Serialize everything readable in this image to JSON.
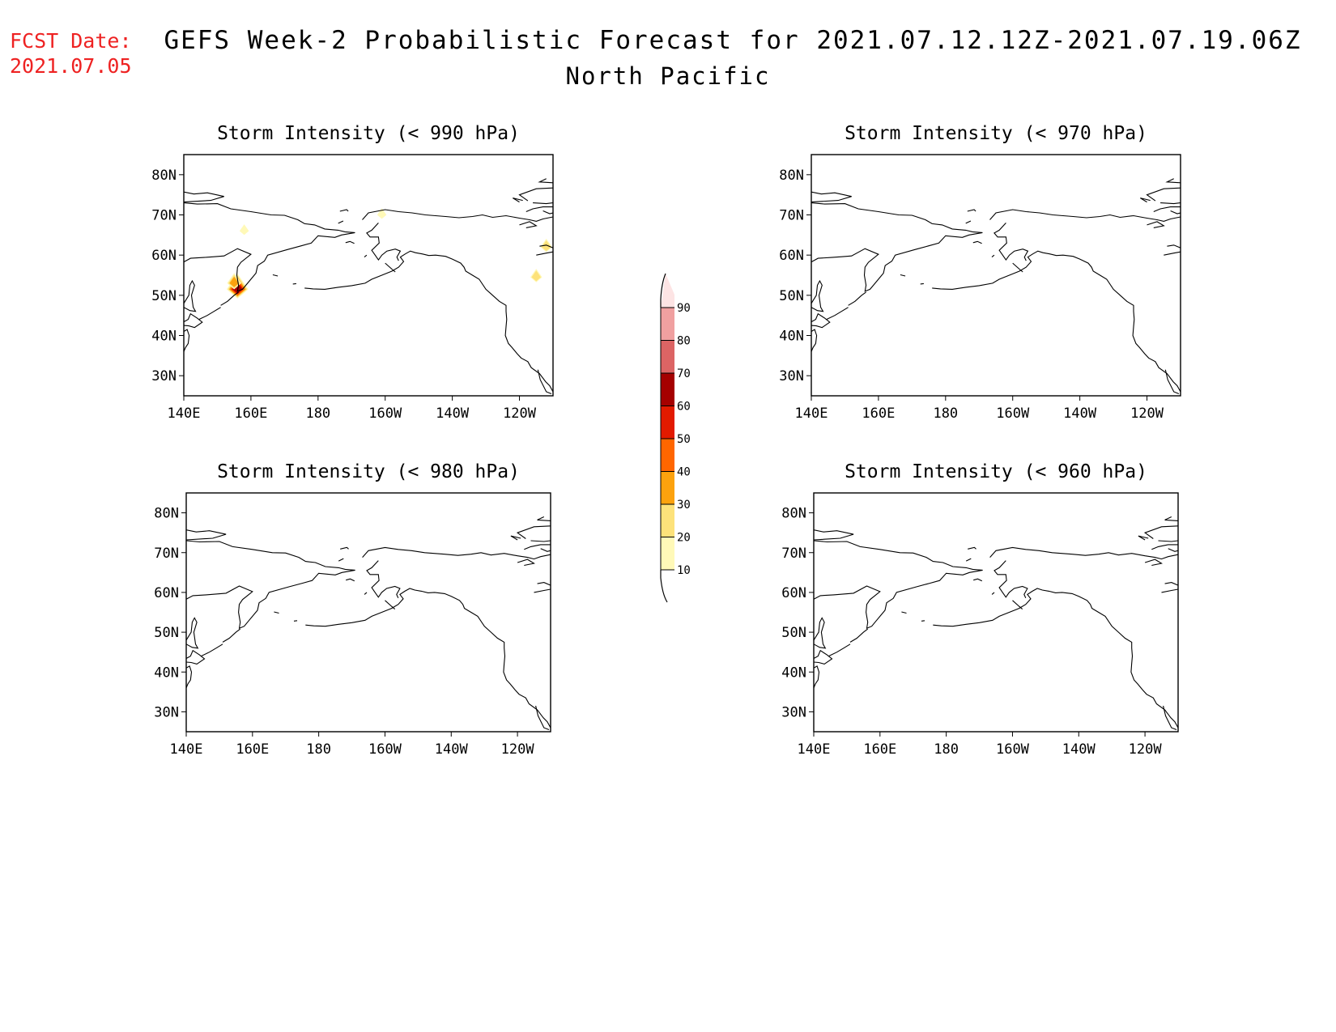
{
  "header": {
    "fcst_label": "FCST Date:",
    "fcst_date": "2021.07.05",
    "title": "GEFS Week-2 Probabilistic Forecast for 2021.07.12.12Z-2021.07.19.06Z",
    "region": "North Pacific"
  },
  "colors": {
    "fcst_text": "#ee2222",
    "scale": [
      "#fff9b8",
      "#fde27a",
      "#fca20e",
      "#ff6600",
      "#e21a00",
      "#a50000",
      "#dc6464",
      "#f0a0a0",
      "#fde4e4"
    ]
  },
  "chart_data": [
    {
      "type": "heatmap",
      "title": "Storm Intensity (< 990 hPa)",
      "x_ticks": [
        "140E",
        "160E",
        "180",
        "160W",
        "140W",
        "120W"
      ],
      "y_ticks": [
        "80N",
        "70N",
        "60N",
        "50N",
        "40N",
        "30N"
      ],
      "xlim": [
        140,
        250
      ],
      "ylim": [
        25,
        85
      ],
      "probability_areas": [
        {
          "lon": 156,
          "lat": 51.5,
          "max_prob": 60
        },
        {
          "lon": 155,
          "lat": 53,
          "max_prob": 30
        },
        {
          "lon": 245,
          "lat": 54.5,
          "max_prob": 20
        },
        {
          "lon": 248,
          "lat": 62,
          "max_prob": 20
        },
        {
          "lon": 158,
          "lat": 66,
          "max_prob": 10
        },
        {
          "lon": 199,
          "lat": 70,
          "max_prob": 10
        }
      ]
    },
    {
      "type": "heatmap",
      "title": "Storm Intensity (< 970 hPa)",
      "x_ticks": [
        "140E",
        "160E",
        "180",
        "160W",
        "140W",
        "120W"
      ],
      "y_ticks": [
        "80N",
        "70N",
        "60N",
        "50N",
        "40N",
        "30N"
      ],
      "xlim": [
        140,
        250
      ],
      "ylim": [
        25,
        85
      ],
      "probability_areas": []
    },
    {
      "type": "heatmap",
      "title": "Storm Intensity (< 980 hPa)",
      "x_ticks": [
        "140E",
        "160E",
        "180",
        "160W",
        "140W",
        "120W"
      ],
      "y_ticks": [
        "80N",
        "70N",
        "60N",
        "50N",
        "40N",
        "30N"
      ],
      "xlim": [
        140,
        250
      ],
      "ylim": [
        25,
        85
      ],
      "probability_areas": []
    },
    {
      "type": "heatmap",
      "title": "Storm Intensity (< 960 hPa)",
      "x_ticks": [
        "140E",
        "160E",
        "180",
        "160W",
        "140W",
        "120W"
      ],
      "y_ticks": [
        "80N",
        "70N",
        "60N",
        "50N",
        "40N",
        "30N"
      ],
      "xlim": [
        140,
        250
      ],
      "ylim": [
        25,
        85
      ],
      "probability_areas": []
    }
  ],
  "colorbar": {
    "labels": [
      "10",
      "20",
      "30",
      "40",
      "50",
      "60",
      "70",
      "80",
      "90"
    ]
  }
}
